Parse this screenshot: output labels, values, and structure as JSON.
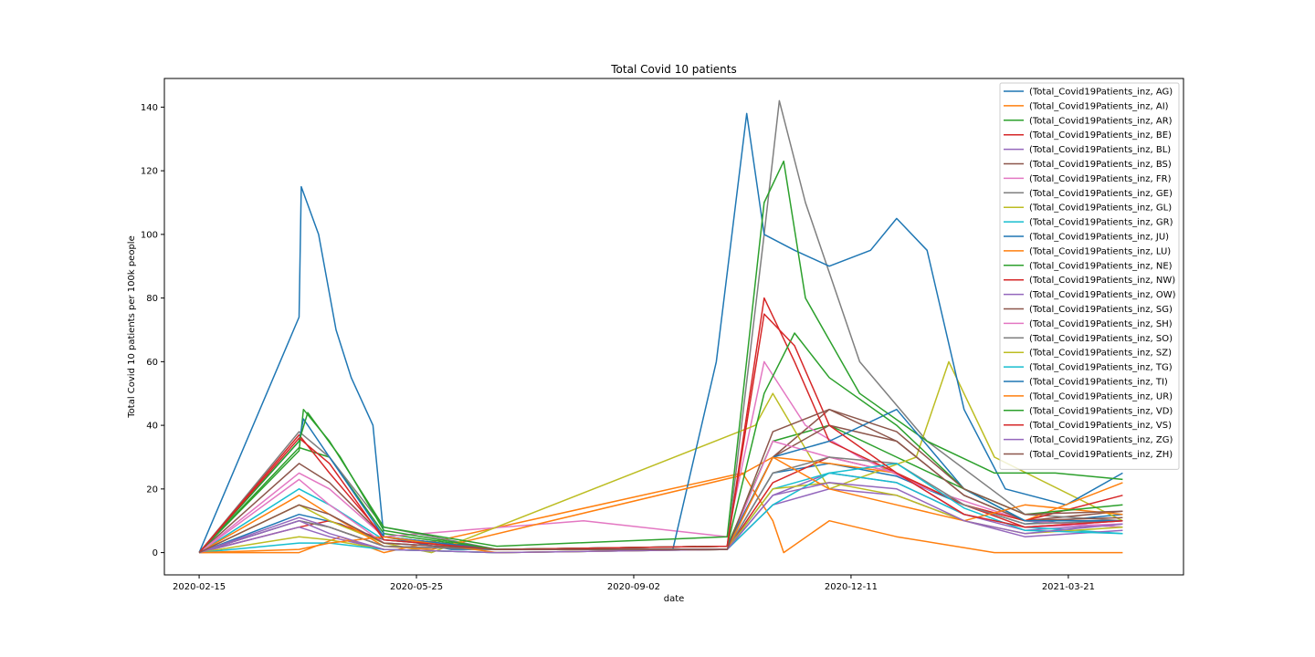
{
  "chart_data": {
    "type": "line",
    "title": "Total Covid 10 patients",
    "xlabel": "date",
    "ylabel": "Total Covid 10 patients per 100k people",
    "xlim": [
      "2020-01-30",
      "2021-05-13"
    ],
    "ylim": [
      -7,
      149
    ],
    "x_ticks": [
      "2020-02-15",
      "2020-05-25",
      "2020-09-02",
      "2020-12-11",
      "2021-03-21"
    ],
    "y_ticks": [
      0,
      20,
      40,
      60,
      80,
      100,
      120,
      140
    ],
    "x_tick_labels": [
      "2020-02-15",
      "2020-05-25",
      "2020-09-02",
      "2020-12-11",
      "2021-03-21"
    ],
    "y_tick_labels": [
      "0",
      "20",
      "40",
      "60",
      "80",
      "100",
      "120",
      "140"
    ],
    "legend_position": "top-right",
    "series": [
      {
        "name": "(Total_Covid19Patients_inz, AG)",
        "color": "#1f77b4",
        "dates": [
          "2020-02-15",
          "2020-04-01",
          "2020-04-20",
          "2020-05-10",
          "2020-06-30",
          "2020-10-15",
          "2020-11-05",
          "2020-12-01",
          "2021-01-01",
          "2021-02-01",
          "2021-03-01",
          "2021-04-15"
        ],
        "values": [
          0,
          12,
          9,
          3,
          1,
          1,
          25,
          28,
          24,
          15,
          9,
          12
        ]
      },
      {
        "name": "(Total_Covid19Patients_inz, AI)",
        "color": "#ff7f0e",
        "dates": [
          "2020-02-15",
          "2020-04-01",
          "2020-04-20",
          "2020-05-10",
          "2020-10-22",
          "2020-11-05",
          "2020-11-10",
          "2020-12-01",
          "2021-01-01",
          "2021-02-15",
          "2021-04-15"
        ],
        "values": [
          0,
          0,
          5,
          0,
          25,
          10,
          0,
          10,
          5,
          0,
          0
        ]
      },
      {
        "name": "(Total_Covid19Patients_inz, AR)",
        "color": "#2ca02c",
        "dates": [
          "2020-02-15",
          "2020-04-01",
          "2020-04-15",
          "2020-05-10",
          "2020-07-01",
          "2020-10-15",
          "2020-11-05",
          "2020-12-01",
          "2021-01-01",
          "2021-02-01",
          "2021-03-01",
          "2021-04-15"
        ],
        "values": [
          0,
          33,
          30,
          6,
          1,
          2,
          35,
          40,
          30,
          20,
          10,
          8
        ]
      },
      {
        "name": "(Total_Covid19Patients_inz, BE)",
        "color": "#d62728",
        "dates": [
          "2020-02-15",
          "2020-04-01",
          "2020-04-15",
          "2020-05-10",
          "2020-07-01",
          "2020-10-15",
          "2020-11-05",
          "2020-12-01",
          "2021-01-01",
          "2021-02-01",
          "2021-03-01",
          "2021-04-15"
        ],
        "values": [
          0,
          8,
          10,
          4,
          1,
          1,
          22,
          30,
          25,
          15,
          8,
          10
        ]
      },
      {
        "name": "(Total_Covid19Patients_inz, BL)",
        "color": "#9467bd",
        "dates": [
          "2020-02-15",
          "2020-04-01",
          "2020-04-15",
          "2020-05-10",
          "2020-07-01",
          "2020-10-15",
          "2020-11-05",
          "2020-12-01",
          "2021-01-01",
          "2021-02-01",
          "2021-03-01",
          "2021-04-15"
        ],
        "values": [
          0,
          11,
          8,
          2,
          1,
          1,
          18,
          25,
          22,
          12,
          7,
          9
        ]
      },
      {
        "name": "(Total_Covid19Patients_inz, BS)",
        "color": "#8c564b",
        "dates": [
          "2020-02-15",
          "2020-04-01",
          "2020-04-15",
          "2020-05-10",
          "2020-07-01",
          "2020-10-15",
          "2020-11-05",
          "2020-12-01",
          "2021-01-01",
          "2021-02-01",
          "2021-03-01",
          "2021-04-15"
        ],
        "values": [
          0,
          28,
          22,
          5,
          1,
          1,
          30,
          45,
          35,
          18,
          10,
          13
        ]
      },
      {
        "name": "(Total_Covid19Patients_inz, FR)",
        "color": "#e377c2",
        "dates": [
          "2020-02-15",
          "2020-04-01",
          "2020-04-15",
          "2020-05-10",
          "2020-06-15",
          "2020-08-10",
          "2020-10-15",
          "2020-11-01",
          "2020-11-20",
          "2020-12-15",
          "2021-01-15",
          "2021-03-01",
          "2021-04-15"
        ],
        "values": [
          0,
          25,
          20,
          5,
          7,
          10,
          5,
          60,
          40,
          30,
          20,
          10,
          8
        ]
      },
      {
        "name": "(Total_Covid19Patients_inz, GE)",
        "color": "#7f7f7f",
        "dates": [
          "2020-02-15",
          "2020-04-01",
          "2020-04-15",
          "2020-05-10",
          "2020-07-01",
          "2020-10-15",
          "2020-11-01",
          "2020-11-08",
          "2020-11-20",
          "2020-12-15",
          "2021-01-15",
          "2021-03-01",
          "2021-04-15"
        ],
        "values": [
          0,
          38,
          30,
          8,
          1,
          2,
          100,
          142,
          110,
          60,
          35,
          12,
          10
        ]
      },
      {
        "name": "(Total_Covid19Patients_inz, GL)",
        "color": "#bcbd22",
        "dates": [
          "2020-02-15",
          "2020-04-01",
          "2020-04-15",
          "2020-05-10",
          "2020-06-01",
          "2020-10-28",
          "2020-11-05",
          "2020-12-01",
          "2021-01-10",
          "2021-01-25",
          "2021-02-15",
          "2021-04-15"
        ],
        "values": [
          0,
          15,
          10,
          3,
          0,
          40,
          50,
          20,
          30,
          60,
          30,
          10
        ]
      },
      {
        "name": "(Total_Covid19Patients_inz, GR)",
        "color": "#17becf",
        "dates": [
          "2020-02-15",
          "2020-04-01",
          "2020-04-15",
          "2020-05-10",
          "2020-07-01",
          "2020-10-15",
          "2020-11-05",
          "2020-12-01",
          "2021-01-01",
          "2021-02-01",
          "2021-03-01",
          "2021-04-15"
        ],
        "values": [
          0,
          20,
          15,
          4,
          1,
          1,
          20,
          25,
          22,
          12,
          8,
          6
        ]
      },
      {
        "name": "(Total_Covid19Patients_inz, JU)",
        "color": "#1f77b4",
        "dates": [
          "2020-02-15",
          "2020-04-01",
          "2020-04-02",
          "2020-04-10",
          "2020-04-18",
          "2020-04-25",
          "2020-05-05",
          "2020-05-10",
          "2020-06-10",
          "2020-09-20",
          "2020-10-10",
          "2020-10-24",
          "2020-11-01",
          "2020-11-15",
          "2020-12-01",
          "2020-12-20",
          "2021-01-01",
          "2021-01-15",
          "2021-02-01",
          "2021-02-20",
          "2021-03-20",
          "2021-04-15"
        ],
        "values": [
          0,
          74,
          115,
          100,
          70,
          55,
          40,
          5,
          1,
          1,
          60,
          138,
          100,
          95,
          90,
          95,
          105,
          95,
          45,
          20,
          15,
          25
        ]
      },
      {
        "name": "(Total_Covid19Patients_inz, LU)",
        "color": "#ff7f0e",
        "dates": [
          "2020-02-15",
          "2020-04-01",
          "2020-04-15",
          "2020-05-10",
          "2020-06-01",
          "2020-10-20",
          "2020-11-05",
          "2020-12-01",
          "2021-01-01",
          "2021-02-01",
          "2021-03-01",
          "2021-04-15"
        ],
        "values": [
          0,
          18,
          12,
          2,
          1,
          24,
          30,
          28,
          25,
          15,
          10,
          22
        ]
      },
      {
        "name": "(Total_Covid19Patients_inz, NE)",
        "color": "#2ca02c",
        "dates": [
          "2020-02-15",
          "2020-04-01",
          "2020-04-03",
          "2020-04-15",
          "2020-05-10",
          "2020-07-01",
          "2020-10-15",
          "2020-11-01",
          "2020-11-10",
          "2020-11-20",
          "2020-12-15",
          "2021-01-15",
          "2021-02-15",
          "2021-03-15",
          "2021-04-15"
        ],
        "values": [
          0,
          32,
          45,
          35,
          8,
          2,
          5,
          110,
          123,
          80,
          50,
          35,
          25,
          25,
          23
        ]
      },
      {
        "name": "(Total_Covid19Patients_inz, NW)",
        "color": "#d62728",
        "dates": [
          "2020-02-15",
          "2020-04-01",
          "2020-04-15",
          "2020-05-10",
          "2020-07-01",
          "2020-10-15",
          "2020-11-01",
          "2020-11-15",
          "2020-12-01",
          "2021-01-01",
          "2021-02-01",
          "2021-03-01",
          "2021-04-15"
        ],
        "values": [
          0,
          37,
          25,
          5,
          1,
          2,
          80,
          60,
          35,
          25,
          15,
          10,
          18
        ]
      },
      {
        "name": "(Total_Covid19Patients_inz, OW)",
        "color": "#9467bd",
        "dates": [
          "2020-02-15",
          "2020-04-01",
          "2020-04-15",
          "2020-05-10",
          "2020-07-01",
          "2020-10-15",
          "2020-11-05",
          "2020-12-01",
          "2021-01-01",
          "2021-02-01",
          "2021-03-01",
          "2021-04-15"
        ],
        "values": [
          0,
          8,
          5,
          1,
          0,
          1,
          15,
          20,
          18,
          10,
          5,
          7
        ]
      },
      {
        "name": "(Total_Covid19Patients_inz, SG)",
        "color": "#8c564b",
        "dates": [
          "2020-02-15",
          "2020-04-01",
          "2020-04-15",
          "2020-05-10",
          "2020-07-01",
          "2020-10-15",
          "2020-11-05",
          "2020-12-01",
          "2021-01-01",
          "2021-02-01",
          "2021-03-01",
          "2021-04-15"
        ],
        "values": [
          0,
          10,
          8,
          2,
          1,
          1,
          30,
          40,
          35,
          18,
          10,
          11
        ]
      },
      {
        "name": "(Total_Covid19Patients_inz, SH)",
        "color": "#e377c2",
        "dates": [
          "2020-02-15",
          "2020-04-01",
          "2020-04-15",
          "2020-05-10",
          "2020-07-01",
          "2020-10-15",
          "2020-11-05",
          "2020-12-01",
          "2021-01-01",
          "2021-02-01",
          "2021-03-01",
          "2021-04-15"
        ],
        "values": [
          0,
          23,
          15,
          3,
          1,
          1,
          35,
          30,
          25,
          12,
          8,
          9
        ]
      },
      {
        "name": "(Total_Covid19Patients_inz, SO)",
        "color": "#7f7f7f",
        "dates": [
          "2020-02-15",
          "2020-04-01",
          "2020-04-15",
          "2020-05-10",
          "2020-07-01",
          "2020-10-15",
          "2020-11-05",
          "2020-12-01",
          "2021-01-01",
          "2021-02-01",
          "2021-03-01",
          "2021-04-15"
        ],
        "values": [
          0,
          10,
          8,
          2,
          1,
          1,
          25,
          30,
          28,
          15,
          9,
          10
        ]
      },
      {
        "name": "(Total_Covid19Patients_inz, SZ)",
        "color": "#bcbd22",
        "dates": [
          "2020-02-15",
          "2020-04-01",
          "2020-04-15",
          "2020-05-10",
          "2020-07-01",
          "2020-10-15",
          "2020-11-05",
          "2020-12-01",
          "2021-01-01",
          "2021-02-01",
          "2021-03-01",
          "2021-04-15"
        ],
        "values": [
          0,
          5,
          4,
          1,
          0,
          1,
          20,
          22,
          18,
          10,
          6,
          8
        ]
      },
      {
        "name": "(Total_Covid19Patients_inz, TG)",
        "color": "#17becf",
        "dates": [
          "2020-02-15",
          "2020-04-01",
          "2020-04-15",
          "2020-05-10",
          "2020-07-01",
          "2020-10-15",
          "2020-11-05",
          "2020-12-01",
          "2021-01-01",
          "2021-02-01",
          "2021-03-01",
          "2021-04-15"
        ],
        "values": [
          0,
          3,
          3,
          1,
          0,
          1,
          15,
          25,
          28,
          14,
          7,
          6
        ]
      },
      {
        "name": "(Total_Covid19Patients_inz, TI)",
        "color": "#1f77b4",
        "dates": [
          "2020-02-15",
          "2020-04-01",
          "2020-04-03",
          "2020-04-15",
          "2020-05-10",
          "2020-07-01",
          "2020-10-15",
          "2020-11-05",
          "2020-12-01",
          "2021-01-01",
          "2021-02-01",
          "2021-03-01",
          "2021-04-15"
        ],
        "values": [
          0,
          35,
          42,
          30,
          5,
          1,
          2,
          30,
          35,
          45,
          20,
          10,
          10
        ]
      },
      {
        "name": "(Total_Covid19Patients_inz, UR)",
        "color": "#ff7f0e",
        "dates": [
          "2020-02-15",
          "2020-04-01",
          "2020-04-15",
          "2020-05-10",
          "2020-07-01",
          "2020-10-15",
          "2020-11-05",
          "2020-12-01",
          "2021-01-01",
          "2021-02-01",
          "2021-03-01",
          "2021-04-15"
        ],
        "values": [
          0,
          1,
          3,
          5,
          0,
          1,
          30,
          20,
          15,
          10,
          15,
          12
        ]
      },
      {
        "name": "(Total_Covid19Patients_inz, VD)",
        "color": "#2ca02c",
        "dates": [
          "2020-02-15",
          "2020-04-01",
          "2020-04-05",
          "2020-04-20",
          "2020-05-10",
          "2020-07-01",
          "2020-10-15",
          "2020-11-01",
          "2020-11-15",
          "2020-12-01",
          "2021-01-01",
          "2021-02-01",
          "2021-03-01",
          "2021-04-15"
        ],
        "values": [
          0,
          35,
          44,
          30,
          7,
          1,
          2,
          50,
          69,
          55,
          40,
          20,
          12,
          15
        ]
      },
      {
        "name": "(Total_Covid19Patients_inz, VS)",
        "color": "#d62728",
        "dates": [
          "2020-02-15",
          "2020-04-01",
          "2020-04-15",
          "2020-05-10",
          "2020-07-01",
          "2020-10-15",
          "2020-11-01",
          "2020-11-15",
          "2020-12-01",
          "2021-01-01",
          "2021-02-01",
          "2021-03-01",
          "2021-04-15"
        ],
        "values": [
          0,
          36,
          28,
          4,
          1,
          2,
          75,
          65,
          40,
          25,
          12,
          8,
          10
        ]
      },
      {
        "name": "(Total_Covid19Patients_inz, ZG)",
        "color": "#9467bd",
        "dates": [
          "2020-02-15",
          "2020-04-01",
          "2020-04-15",
          "2020-05-10",
          "2020-07-01",
          "2020-10-15",
          "2020-11-05",
          "2020-12-01",
          "2021-01-01",
          "2021-02-01",
          "2021-03-01",
          "2021-04-15"
        ],
        "values": [
          0,
          10,
          6,
          1,
          0,
          1,
          18,
          22,
          20,
          10,
          6,
          9
        ]
      },
      {
        "name": "(Total_Covid19Patients_inz, ZH)",
        "color": "#8c564b",
        "dates": [
          "2020-02-15",
          "2020-04-01",
          "2020-04-15",
          "2020-05-10",
          "2020-07-01",
          "2020-10-15",
          "2020-11-05",
          "2020-12-01",
          "2021-01-01",
          "2021-02-01",
          "2021-03-01",
          "2021-04-15"
        ],
        "values": [
          0,
          15,
          12,
          3,
          1,
          1,
          38,
          45,
          38,
          20,
          12,
          13
        ]
      }
    ]
  }
}
